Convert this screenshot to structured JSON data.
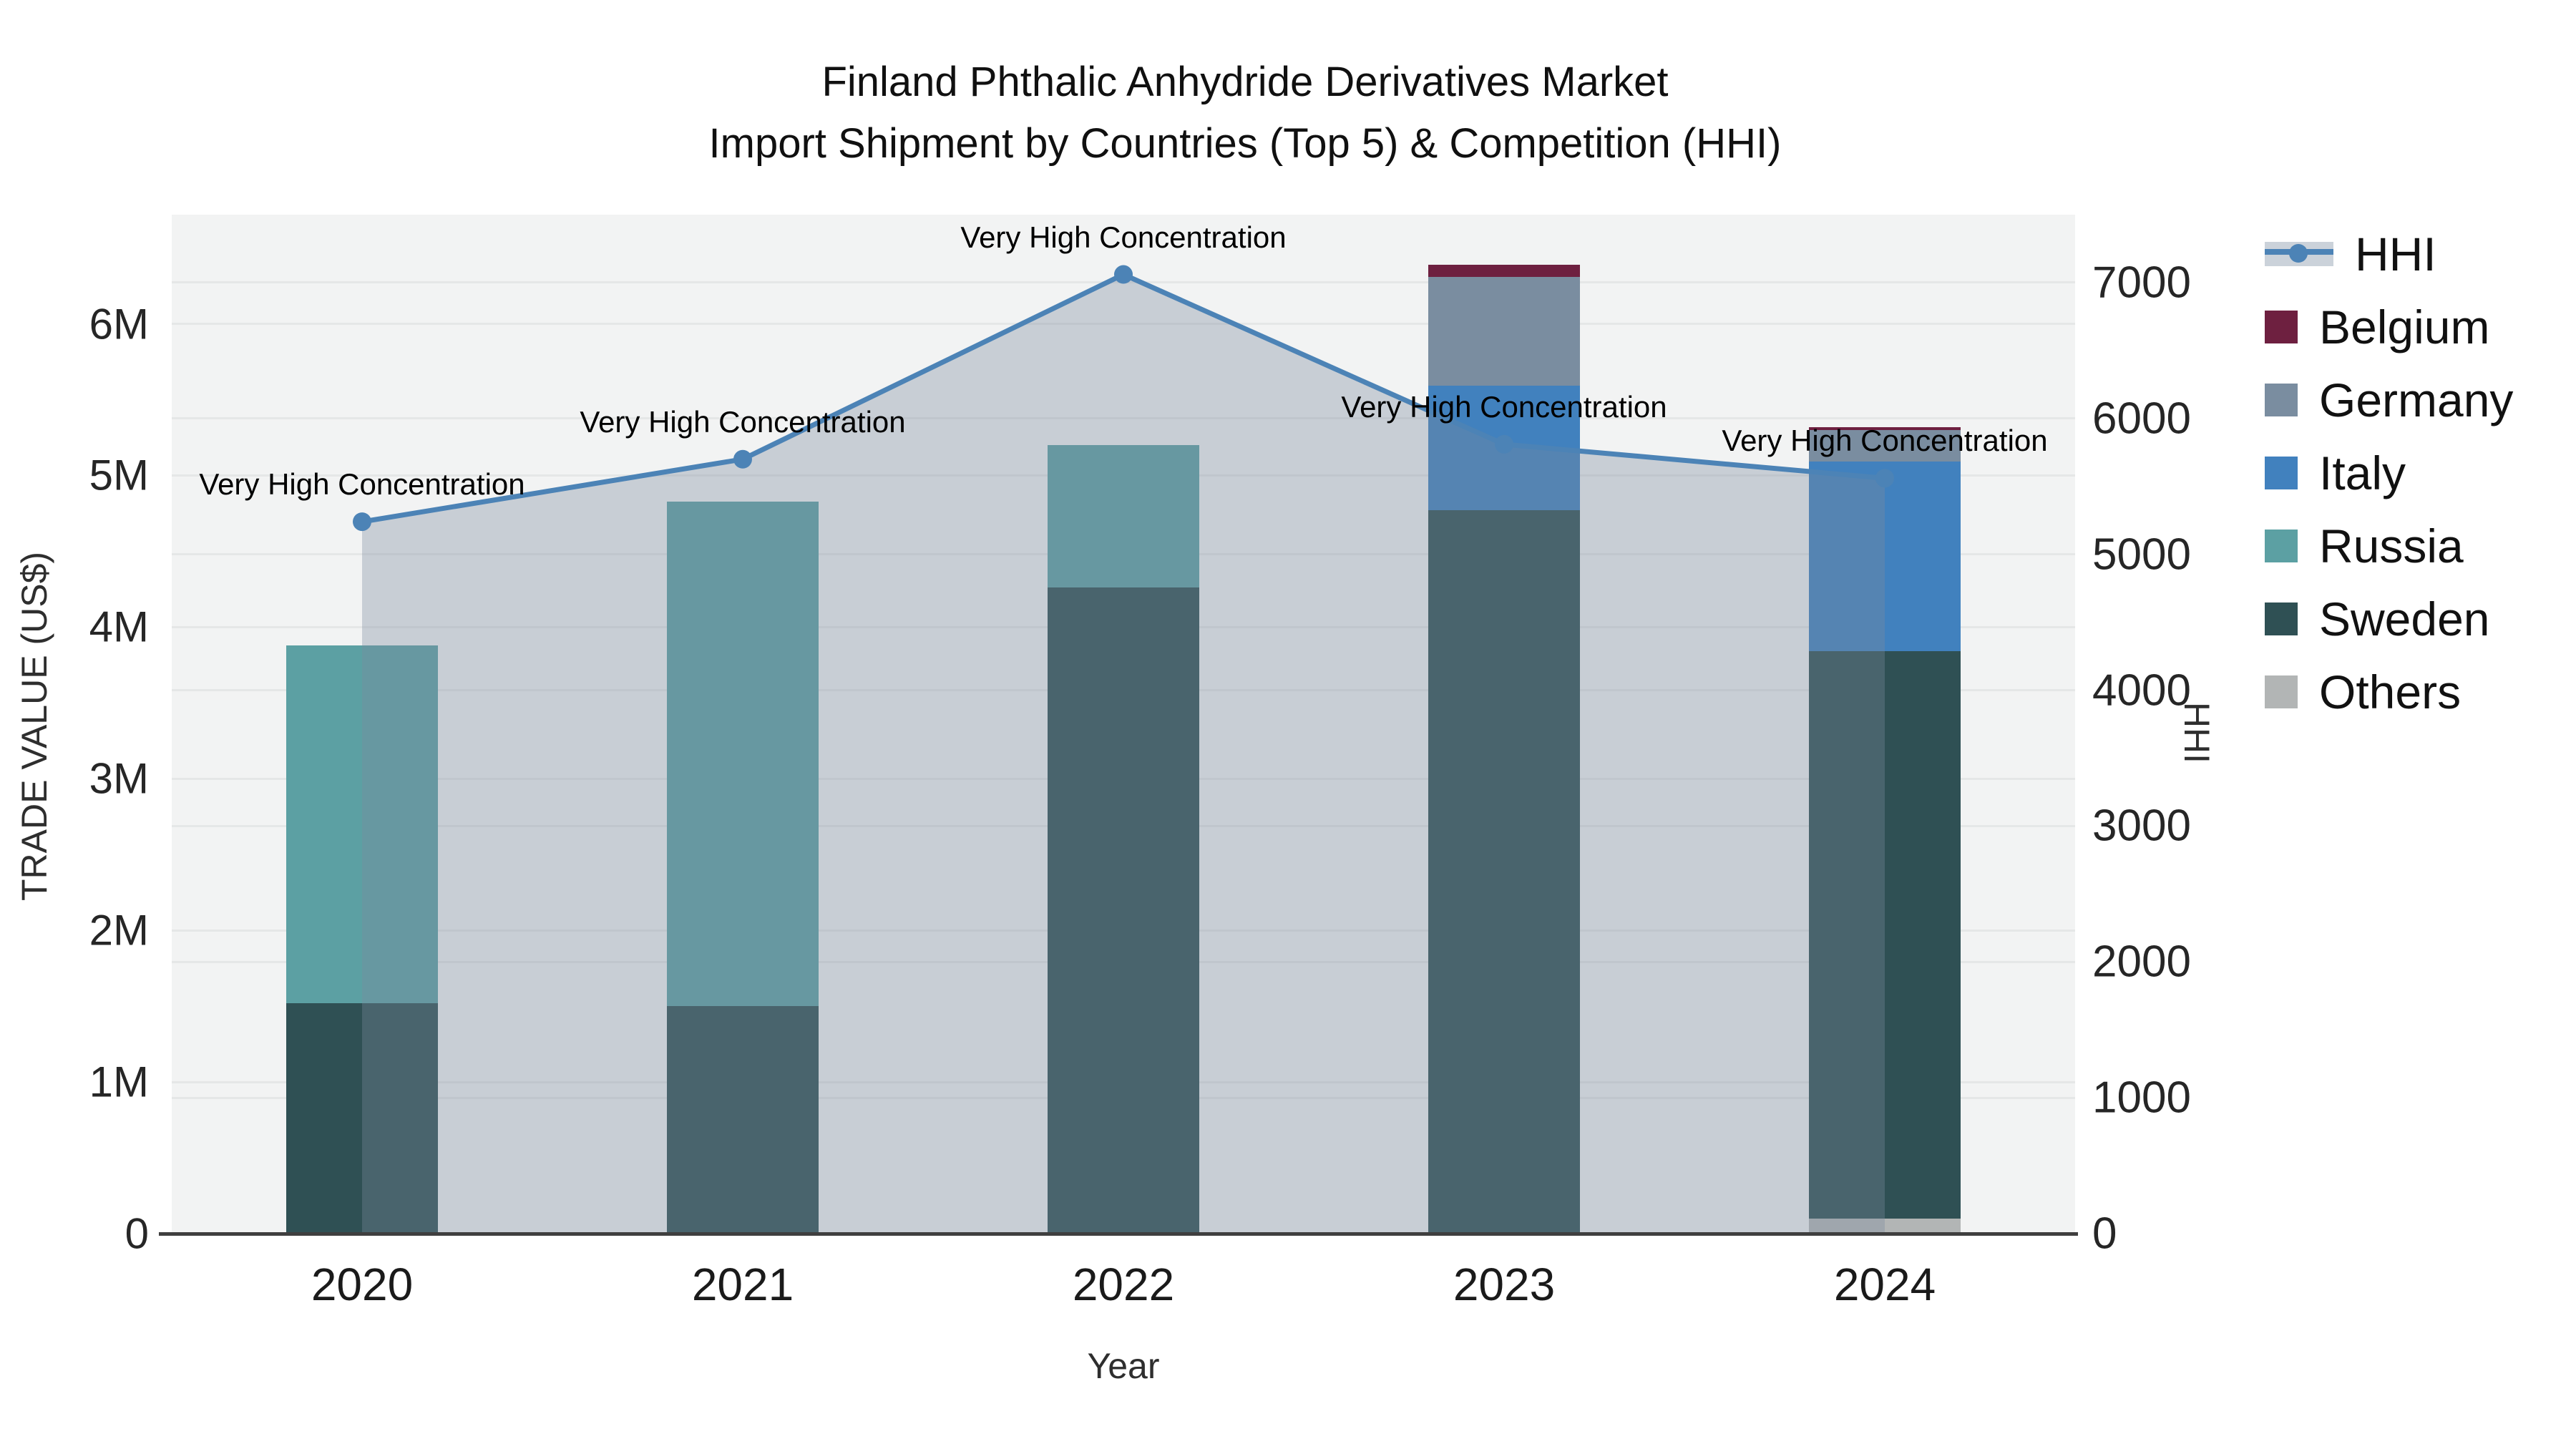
{
  "title": {
    "line1": "Finland Phthalic Anhydride Derivatives Market",
    "line2": "Import Shipment by Countries (Top 5) & Competition (HHI)"
  },
  "axes": {
    "x": {
      "title": "Year",
      "ticks": [
        "2020",
        "2021",
        "2022",
        "2023",
        "2024"
      ]
    },
    "y_left": {
      "title": "TRADE VALUE (US$)",
      "ticks": [
        "0",
        "1M",
        "2M",
        "3M",
        "4M",
        "5M",
        "6M"
      ]
    },
    "y_right": {
      "title": "HHI",
      "ticks": [
        "0",
        "1000",
        "2000",
        "3000",
        "4000",
        "5000",
        "6000",
        "7000"
      ]
    }
  },
  "legend": {
    "items": [
      {
        "label": "HHI",
        "type": "line"
      },
      {
        "label": "Belgium",
        "type": "swatch",
        "color": "#6E2040"
      },
      {
        "label": "Germany",
        "type": "swatch",
        "color": "#7A8DA0"
      },
      {
        "label": "Italy",
        "type": "swatch",
        "color": "#4181BE"
      },
      {
        "label": "Russia",
        "type": "swatch",
        "color": "#5CA0A3"
      },
      {
        "label": "Sweden",
        "type": "swatch",
        "color": "#2F5054"
      },
      {
        "label": "Others",
        "type": "swatch",
        "color": "#B2B5B5"
      }
    ]
  },
  "colors": {
    "plot_background": "#F2F3F3",
    "gridline": "#E5E7E7",
    "axis_line": "#3F3F3F",
    "hhi_line": "#4C83B6",
    "hhi_fill": "rgba(124,138,158,0.35)",
    "belgium": "#6E2040",
    "germany": "#7A8DA0",
    "italy": "#4181BE",
    "russia": "#5CA0A3",
    "sweden": "#2F5054",
    "others": "#B2B5B5"
  },
  "chart_data": {
    "type": "bar",
    "subtype": "stacked-bar-with-line",
    "title": "Finland Phthalic Anhydride Derivatives Market — Import Shipment by Countries (Top 5) & Competition (HHI)",
    "xlabel": "Year",
    "ylabel": "TRADE VALUE (US$)",
    "y2label": "HHI",
    "categories": [
      "2020",
      "2021",
      "2022",
      "2023",
      "2024"
    ],
    "bar_value_unit": "millions US$",
    "series": [
      {
        "name": "Belgium",
        "values": [
          0,
          0,
          0,
          0.08,
          0.02
        ]
      },
      {
        "name": "Germany",
        "values": [
          0,
          0,
          0,
          0.72,
          0.21
        ]
      },
      {
        "name": "Italy",
        "values": [
          0,
          0,
          0,
          0.82,
          1.25
        ]
      },
      {
        "name": "Russia",
        "values": [
          2.36,
          3.33,
          0.94,
          0,
          0
        ]
      },
      {
        "name": "Sweden",
        "values": [
          1.52,
          1.5,
          4.26,
          4.77,
          3.74
        ]
      },
      {
        "name": "Others",
        "values": [
          0,
          0,
          0,
          0,
          0.1
        ]
      }
    ],
    "stack_order_bottom_to_top": [
      "Others",
      "Sweden",
      "Russia",
      "Italy",
      "Germany",
      "Belgium"
    ],
    "line_series": {
      "name": "HHI",
      "axis": "right",
      "values": [
        5240,
        5700,
        7060,
        5810,
        5560
      ]
    },
    "point_annotations": [
      "Very High Concentration",
      "Very High Concentration",
      "Very High Concentration",
      "Very High Concentration",
      "Very High Concentration"
    ],
    "ylim_left": [
      0,
      6.72
    ],
    "ylim_right": [
      0,
      7500
    ],
    "grid": true,
    "legend_position": "right",
    "area_fill_under_line": true
  }
}
